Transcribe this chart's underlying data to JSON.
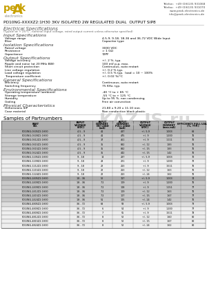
{
  "title": "PD10NG-XXXXZ2:1H30 3KV ISOLATED 2W REGULATED DUAL  OUTPUT SIP8",
  "contact_lines": [
    "Telefon:  +49 (0)6135 931068",
    "Telefax:  +49 (0)6135 931070",
    "www.peak-electronics.de",
    "info@peak-electronics.de"
  ],
  "section_electrical": "Electrical Specifications",
  "note_electrical": "(Typical at + 25°C , nominal input voltage, rated output current unless otherwise specified)",
  "section_input": "Input Specifications",
  "input_rows": [
    [
      "Voltage range",
      "4.5-9, 9-18, 18-36 and 36-72 VDC Wide Input"
    ],
    [
      "Filter",
      "Capacitor type"
    ]
  ],
  "section_isolation": "Isolation Specifications",
  "isolation_rows": [
    [
      "Rated voltage",
      "3000 VDC"
    ],
    [
      "Resistance",
      "> 1 GΩ"
    ],
    [
      "Capacitance",
      "72PF"
    ]
  ],
  "section_output": "Output Specifications",
  "output_rows": [
    [
      "Voltage accuracy",
      "+/- 2 %, typ."
    ],
    [
      "Ripple and noise (at 20 MHz BW)",
      "100 mV p-p, max."
    ],
    [
      "Short circuit protection",
      "Continuous, auto restart"
    ],
    [
      "Line voltage regulation",
      "+/- 0.2 % typ."
    ],
    [
      "Load voltage regulation",
      "+/- 0.5 % typ.  load = 10 ~ 100%"
    ],
    [
      "Temperature coefficient",
      "+/- 0.02 %/°C"
    ]
  ],
  "section_general": "General Specifications",
  "general_rows": [
    [
      "Efficiency",
      "Continuous, auto restart"
    ],
    [
      "Switching frequency",
      "75 KHz, typ."
    ]
  ],
  "section_environmental": "Environmental Specifications",
  "environmental_rows": [
    [
      "Operating temperature (ambient)",
      "-40 °C to + 85 °C"
    ],
    [
      "Storage temperature",
      "-55 °C to + 125 °C"
    ],
    [
      "Humidity",
      "Up to 95 %, non condensing"
    ],
    [
      "Cooling",
      "Free air convection"
    ]
  ],
  "section_physical": "Physical Characteristics",
  "physical_rows": [
    [
      "Dimensions SIP",
      "21.80 x 9.20 x 11.10 mm"
    ],
    [
      "Case material",
      "Non conductive black plastic"
    ]
  ],
  "section_samples": "Samples of Partnumbers",
  "table_headers": [
    "PART\nNO.",
    "INPUT\nVOLTAGE\n(VDC)",
    "INPUT\nCURRENT\nNO LOAD\n(mA)",
    "INPUT\nCURRENT\nFULL LOAD\n(mA)",
    "OUTPUT\nVOLTAGE\n(VDC)",
    "OUTPUT\nCURRENT\n(max.mA)",
    "EFFICIENCY FULL LOAD\n(%, TYP.)"
  ],
  "table_rows": [
    [
      "PD10NG-0505Z2:1H30",
      "4.5 - 9",
      "41",
      "487",
      "+/- 5.9",
      "1,003",
      "68"
    ],
    [
      "PD10NG-0509Z2:1H30",
      "4.5 - 9",
      "41",
      "475",
      "+/- 9",
      "1,200",
      "76"
    ],
    [
      "PD10NG-0512Z2:1H30",
      "4.5 - 9",
      "37",
      "461",
      "+/- 9",
      "1,111",
      "76"
    ],
    [
      "PD10NG-0515Z2:1H30",
      "4.5 - 9",
      "35",
      "882",
      "+/- 12",
      "1,83",
      "76"
    ],
    [
      "PD10NG-0515Z2:1H30",
      "4.5 - 9",
      "35",
      "882",
      "+/- 15",
      "1,83",
      "76"
    ],
    [
      "PD10NG-0524Z2:1H30",
      "4.5 - 9",
      "35",
      "442",
      "+/- 15",
      "1,42",
      "76"
    ],
    [
      "PD10NG-1205Z2:1H30",
      "9 - 18",
      "14",
      "237",
      "+/- 5.9",
      "1,003",
      "70"
    ],
    [
      "PD10NG-1209Z2:1H30",
      "9 - 18",
      "23",
      "221",
      "+/- 9",
      "1,200",
      "72"
    ],
    [
      "PD10NG-1212Z2:1H30",
      "9 - 18",
      "22",
      "213",
      "+/- 9",
      "1,511",
      "76"
    ],
    [
      "PD10NG-1215Z2:1H30",
      "9 - 18",
      "22",
      "213",
      "+/- 12",
      "1,63",
      "76"
    ],
    [
      "PD10NG-1224Z2:1H30",
      "9 - 18",
      "22",
      "213",
      "+/- 24",
      "1,62",
      "76"
    ],
    [
      "PD10NG-2405Z2:1H30",
      "18 - 36",
      "52",
      "117",
      "+/- 5.9",
      "1,003",
      "74"
    ],
    [
      "PD10NG-2409Z2:1H30",
      "18 - 36",
      "7.2",
      "109",
      "+/- 9",
      "1,200",
      "76"
    ],
    [
      "PD10NG-2409Z2:1H30",
      "18 - 36",
      "7.2",
      "108",
      "+/- 9",
      "1,151",
      "77"
    ],
    [
      "PD10NG-2412Z2:1H30",
      "18 - 36",
      "7.2",
      "109",
      "+/- 12",
      "1,63",
      "76"
    ],
    [
      "PD10NG-2415Z2:1H30",
      "18 - 36",
      "7.2",
      "107",
      "+/- 15",
      "1,67",
      "77"
    ],
    [
      "PD10NG-2424Z2:1H30",
      "18 - 36",
      "51",
      "105",
      "+/- 24",
      "1,42",
      "76"
    ],
    [
      "PD10NG-4805Z2:1H30",
      "36 - 72",
      "68",
      "58",
      "+/- 5.9",
      "1,003",
      "73"
    ],
    [
      "PD10NG-4809Z2:1H30",
      "36 - 72",
      "6",
      "54",
      "+/- 9",
      "1,200",
      "77"
    ],
    [
      "PD10NG-4809Z2:1H30",
      "36 - 72",
      "7",
      "55",
      "+/- 9",
      "1,511",
      "78"
    ],
    [
      "PD10NG-4812Z2:1H30",
      "36 - 72",
      "8",
      "52",
      "+/- 12",
      "1,60",
      "80"
    ],
    [
      "PD10NG-4815Z2:1H30",
      "36 - 72",
      "8",
      "52",
      "+/- 15",
      "1,67",
      "80"
    ],
    [
      "PD10NG-4824Z2:1H30",
      "36 - 72",
      "8",
      "52",
      "+/- 24",
      "1,62",
      "80"
    ]
  ],
  "bg_color": "#ffffff",
  "logo_gold": "#c8a000",
  "table_header_bg": "#b0b0b0",
  "watermark_text": "KAZ.JS.ru",
  "watermark_sub": "ЭЛЕКТРОННЫЙ    ПОрТАЛ"
}
